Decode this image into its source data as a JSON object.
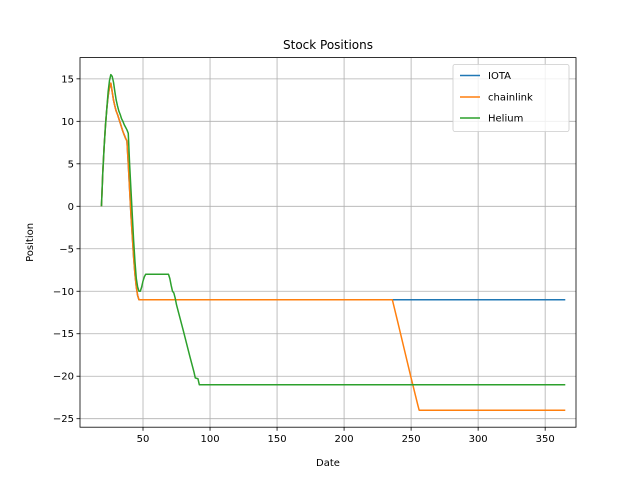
{
  "chart_data": {
    "type": "line",
    "title": "Stock Positions",
    "xlabel": "Date",
    "ylabel": "Position",
    "xlim": [
      3,
      373
    ],
    "ylim": [
      -26,
      17.5
    ],
    "xticks": [
      50,
      100,
      150,
      200,
      250,
      300,
      350
    ],
    "yticks": [
      15,
      10,
      5,
      0,
      -5,
      -10,
      -15,
      -20,
      -25
    ],
    "xtick_labels": [
      "50",
      "100",
      "150",
      "200",
      "250",
      "300",
      "350"
    ],
    "ytick_labels": [
      "15",
      "10",
      "5",
      "0",
      "−5",
      "−10",
      "−15",
      "−20",
      "−25"
    ],
    "grid": true,
    "legend_position": "top-right",
    "series": [
      {
        "name": "IOTA",
        "color": "#1f77b4",
        "points": [
          [
            19,
            0
          ],
          [
            20,
            4
          ],
          [
            21,
            7
          ],
          [
            22,
            9.5
          ],
          [
            23,
            11.5
          ],
          [
            24,
            13
          ],
          [
            25,
            14
          ],
          [
            26,
            14.5
          ],
          [
            27,
            13.5
          ],
          [
            28,
            12.5
          ],
          [
            29,
            11.8
          ],
          [
            30,
            11.2
          ],
          [
            31,
            10.8
          ],
          [
            32,
            10.3
          ],
          [
            33,
            9.8
          ],
          [
            34,
            9.3
          ],
          [
            35,
            8.8
          ],
          [
            36,
            8.4
          ],
          [
            37,
            8
          ],
          [
            38,
            7.7
          ],
          [
            39,
            5
          ],
          [
            40,
            2
          ],
          [
            41,
            -1
          ],
          [
            42,
            -3.5
          ],
          [
            43,
            -6
          ],
          [
            44,
            -8
          ],
          [
            45,
            -9.5
          ],
          [
            46,
            -10.5
          ],
          [
            47,
            -11
          ],
          [
            100,
            -11
          ],
          [
            200,
            -11
          ],
          [
            300,
            -11
          ],
          [
            365,
            -11
          ]
        ]
      },
      {
        "name": "chainlink",
        "color": "#ff7f0e",
        "points": [
          [
            19,
            0
          ],
          [
            20,
            4
          ],
          [
            21,
            7
          ],
          [
            22,
            9.5
          ],
          [
            23,
            11.5
          ],
          [
            24,
            13
          ],
          [
            25,
            14
          ],
          [
            26,
            14.5
          ],
          [
            27,
            13.5
          ],
          [
            28,
            12.5
          ],
          [
            29,
            11.8
          ],
          [
            30,
            11.2
          ],
          [
            31,
            10.8
          ],
          [
            32,
            10.3
          ],
          [
            33,
            9.8
          ],
          [
            34,
            9.3
          ],
          [
            35,
            8.8
          ],
          [
            36,
            8.4
          ],
          [
            37,
            8
          ],
          [
            38,
            7.7
          ],
          [
            39,
            5
          ],
          [
            40,
            2
          ],
          [
            41,
            -1
          ],
          [
            42,
            -3.5
          ],
          [
            43,
            -6
          ],
          [
            44,
            -8
          ],
          [
            45,
            -9.5
          ],
          [
            46,
            -10.5
          ],
          [
            47,
            -11
          ],
          [
            100,
            -11
          ],
          [
            200,
            -11
          ],
          [
            236,
            -11
          ],
          [
            240,
            -13.6
          ],
          [
            245,
            -16.9
          ],
          [
            250,
            -20.2
          ],
          [
            255,
            -23.4
          ],
          [
            256,
            -24
          ],
          [
            300,
            -24
          ],
          [
            365,
            -24
          ]
        ]
      },
      {
        "name": "Helium",
        "color": "#2ca02c",
        "points": [
          [
            19,
            0
          ],
          [
            20,
            4
          ],
          [
            21,
            7
          ],
          [
            22,
            9.5
          ],
          [
            23,
            11.5
          ],
          [
            24,
            13.5
          ],
          [
            25,
            14.8
          ],
          [
            26,
            15.5
          ],
          [
            27,
            15.3
          ],
          [
            28,
            14.6
          ],
          [
            29,
            13.5
          ],
          [
            30,
            12.5
          ],
          [
            31,
            11.8
          ],
          [
            32,
            11.2
          ],
          [
            33,
            10.8
          ],
          [
            34,
            10.3
          ],
          [
            35,
            10
          ],
          [
            36,
            9.6
          ],
          [
            37,
            9.3
          ],
          [
            38,
            9
          ],
          [
            39,
            8.6
          ],
          [
            40,
            5
          ],
          [
            41,
            2
          ],
          [
            42,
            -1
          ],
          [
            43,
            -4
          ],
          [
            44,
            -6.5
          ],
          [
            45,
            -8.5
          ],
          [
            46,
            -9.5
          ],
          [
            47,
            -10
          ],
          [
            48,
            -10
          ],
          [
            49,
            -9.5
          ],
          [
            50,
            -8.8
          ],
          [
            51,
            -8.3
          ],
          [
            52,
            -8
          ],
          [
            60,
            -8
          ],
          [
            69,
            -8
          ],
          [
            70,
            -8.5
          ],
          [
            71,
            -9.3
          ],
          [
            72,
            -10
          ],
          [
            73,
            -10.2
          ],
          [
            74,
            -10.8
          ],
          [
            75,
            -11.6
          ],
          [
            80,
            -14.6
          ],
          [
            85,
            -17.7
          ],
          [
            88,
            -19.5
          ],
          [
            89,
            -20.2
          ],
          [
            91,
            -20.3
          ],
          [
            92,
            -21
          ],
          [
            100,
            -21
          ],
          [
            200,
            -21
          ],
          [
            300,
            -21
          ],
          [
            365,
            -21
          ]
        ]
      }
    ]
  }
}
